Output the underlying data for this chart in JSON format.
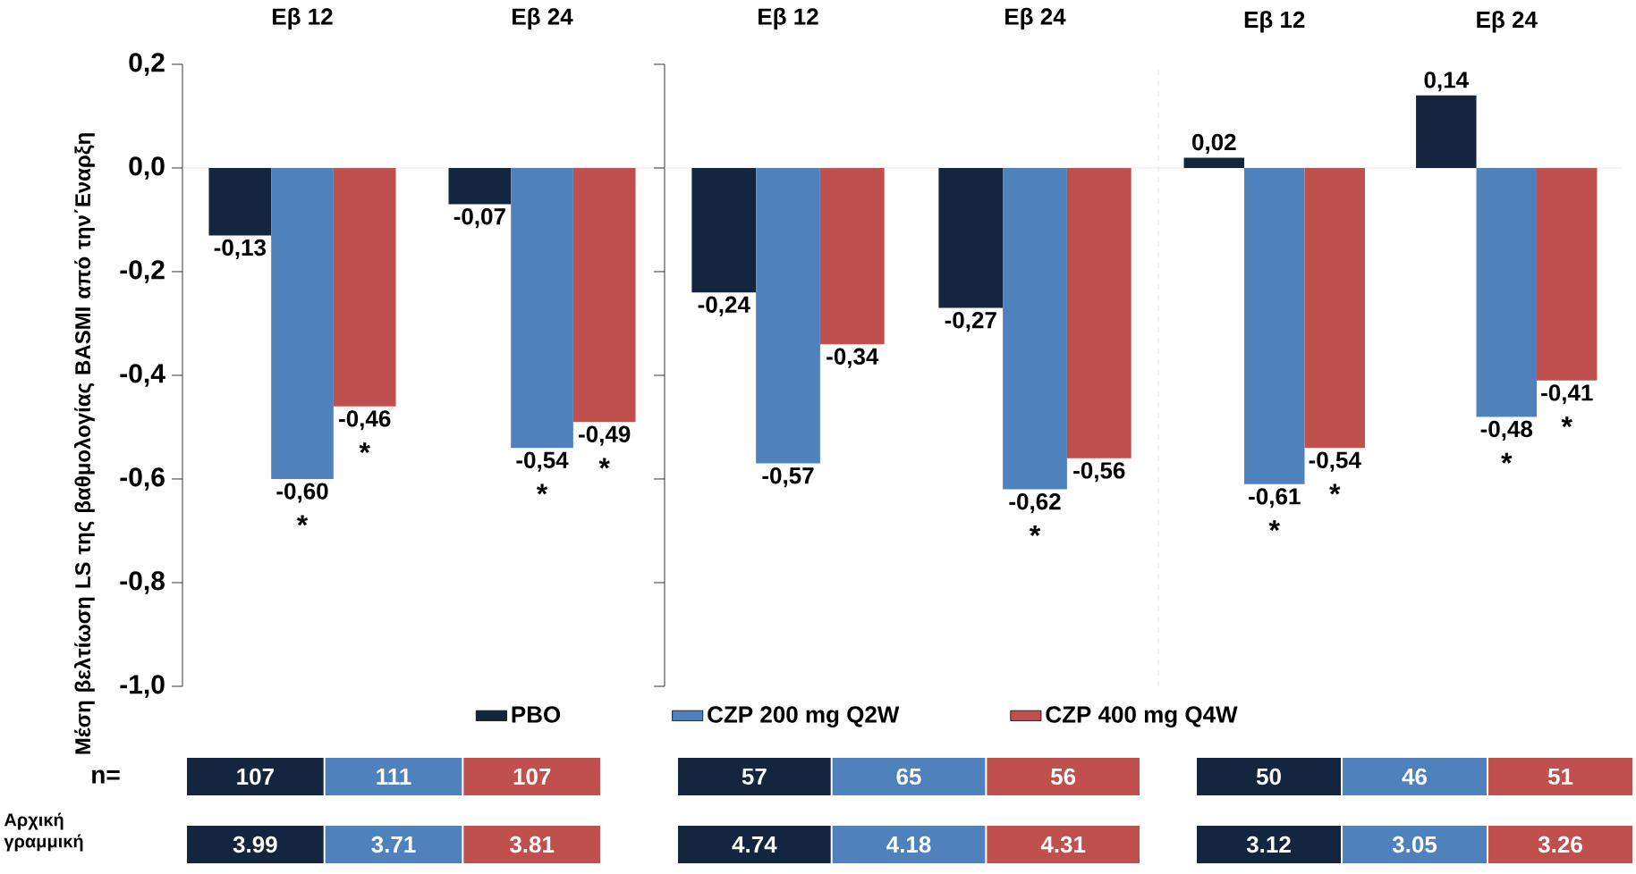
{
  "chart_data": [
    {
      "type": "bar",
      "categories": [
        "Εβ 12",
        "Εβ 24"
      ],
      "ylabel": "Μέση βελτίωση LS της βαθμολογίας BASMI από την΄Εναρξη",
      "ylim": [
        -1.0,
        0.2
      ],
      "yticks": [
        {
          "value": 0.2,
          "label": "0,2"
        },
        {
          "value": 0.0,
          "label": "0,0"
        },
        {
          "value": -0.2,
          "label": "-0,2"
        },
        {
          "value": -0.4,
          "label": "-0,4"
        },
        {
          "value": -0.6,
          "label": "-0,6"
        },
        {
          "value": -0.8,
          "label": "-0,8"
        },
        {
          "value": -1.0,
          "label": "-1,0"
        }
      ],
      "legend": "bottom",
      "series": [
        {
          "name": "PBO",
          "color": "#13253f",
          "values": [
            -0.13,
            -0.07
          ],
          "value_labels": [
            "-0,13",
            "-0,07"
          ]
        },
        {
          "name": "CZP 200 mg Q2W",
          "color": "#4f81bd",
          "values": [
            -0.6,
            -0.54
          ],
          "value_labels": [
            "-0,60",
            "-0,54"
          ]
        },
        {
          "name": "CZP 400 mg Q4W",
          "color": "#c0504d",
          "values": [
            -0.46,
            -0.49
          ],
          "value_labels": [
            "-0,46",
            "-0,49"
          ]
        }
      ],
      "annotations": [
        {
          "text": "*",
          "y": -0.6
        },
        {
          "text": "*",
          "y": -0.54
        },
        {
          "text": "*",
          "y": -0.46
        },
        {
          "text": "*",
          "y": -0.49
        },
        "107",
        "111",
        "107",
        "3.99",
        "3.71",
        "3.81"
      ]
    },
    {
      "type": "bar",
      "categories": [
        "Εβ 12",
        "Εβ 24"
      ],
      "ylim": [
        -1.0,
        0.2
      ],
      "yticks": [
        {
          "value": 0.2,
          "label": null
        },
        {
          "value": 0.0,
          "label": null
        },
        {
          "value": -0.2,
          "label": null
        },
        {
          "value": -0.4,
          "label": null
        },
        {
          "value": -0.6,
          "label": null
        },
        {
          "value": -0.8,
          "label": null
        },
        {
          "value": -1.0,
          "label": null
        }
      ],
      "tick_labels": "x",
      "series": [
        {
          "color": "#13253f",
          "values": [
            -0.24,
            -0.27
          ],
          "value_labels": [
            "-0,24",
            "-0,27"
          ]
        },
        {
          "color": "#4f81bd",
          "values": [
            -0.57,
            -0.62
          ],
          "value_labels": [
            "-0,57",
            "-0,62"
          ]
        },
        {
          "color": "#c0504d",
          "values": [
            -0.34,
            -0.56
          ],
          "value_labels": [
            "-0,34",
            "-0,56"
          ]
        }
      ],
      "annotations": [
        {
          "text": "*",
          "y": -0.62
        },
        "57",
        "65",
        "56",
        "4.74",
        "4.18",
        "4.31"
      ]
    },
    {
      "type": "bar",
      "categories": [
        "Εβ 12",
        "Εβ 24"
      ],
      "ylim": [
        -1.0,
        0.2
      ],
      "tick_labels": "x",
      "series": [
        {
          "color": "#13253f",
          "values": [
            0.02,
            0.14
          ],
          "value_labels": [
            "0,02",
            "0,14"
          ]
        },
        {
          "color": "#4f81bd",
          "values": [
            -0.61,
            -0.48
          ],
          "value_labels": [
            "-0,61",
            "-0,48"
          ]
        },
        {
          "color": "#c0504d",
          "values": [
            -0.54,
            -0.41
          ],
          "value_labels": [
            "-0,54",
            "-0,41"
          ]
        }
      ],
      "annotations": [
        {
          "text": "*",
          "y": -0.61
        },
        {
          "text": "*",
          "y": -0.48
        },
        {
          "text": "*",
          "y": -0.54
        },
        {
          "text": "*",
          "y": -0.41
        },
        "50",
        "46",
        "51",
        "3.12",
        "3.05",
        "3.26"
      ]
    },
    {
      "type": "other",
      "annotations": [
        "n=",
        "Αρχική γραμμική"
      ]
    }
  ]
}
